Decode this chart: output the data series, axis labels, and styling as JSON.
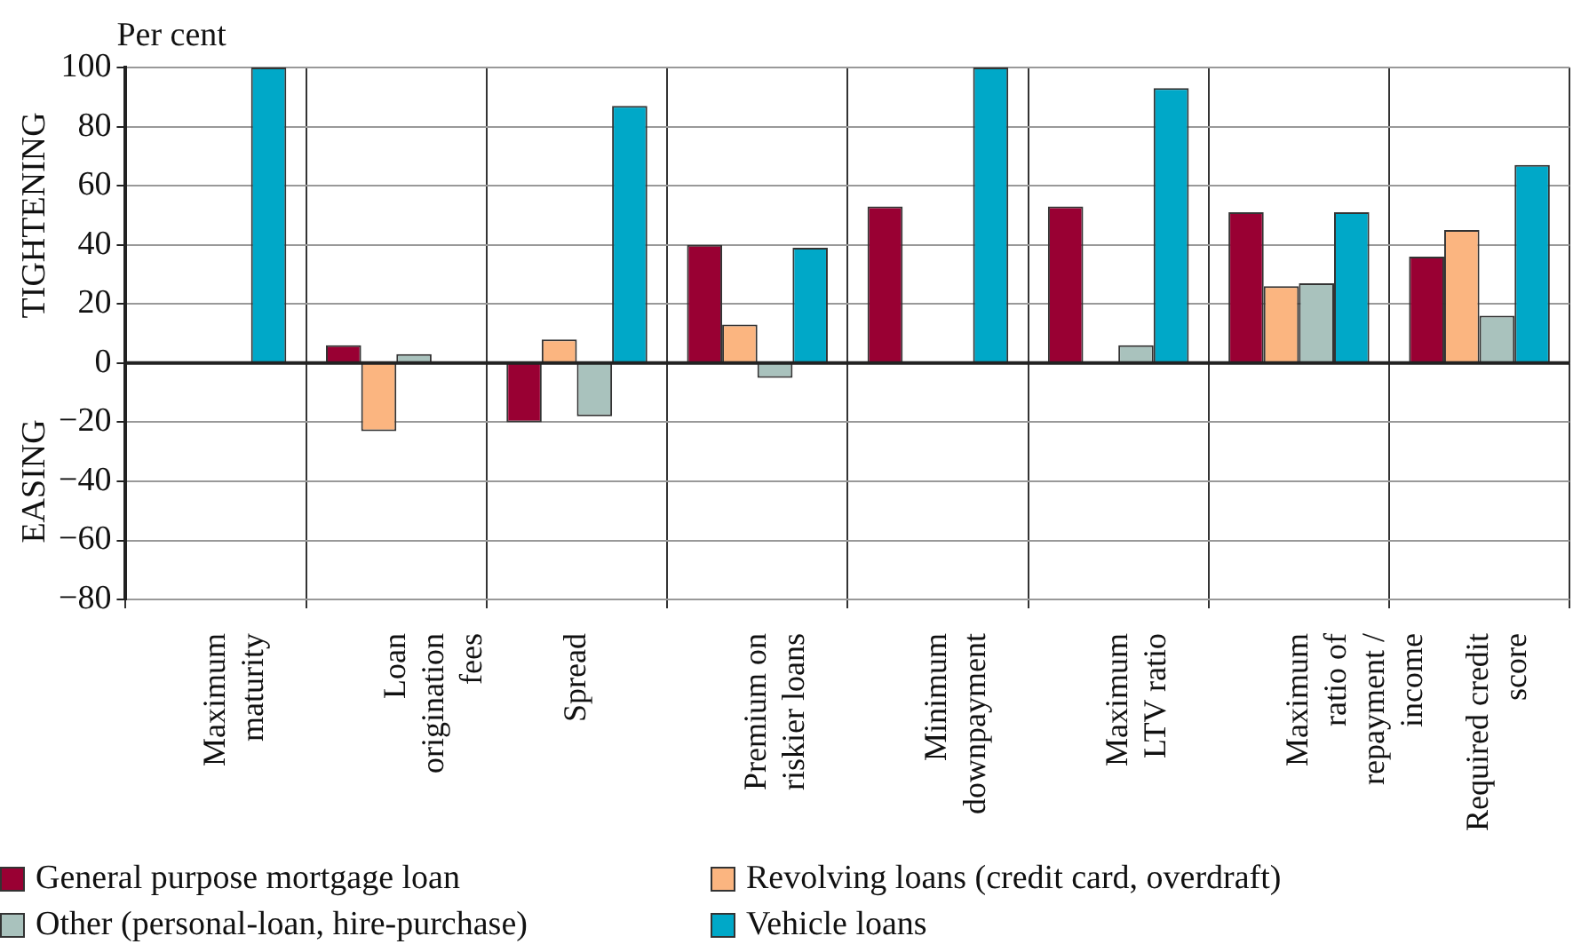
{
  "chart_data": {
    "type": "bar",
    "ylabel": "Per cent",
    "annotations": [
      "TIGHTENING",
      "EASING"
    ],
    "categories": [
      "Maximum maturity",
      "Loan origination fees",
      "Spread",
      "Premium on riskier loans",
      "Minimum downpayment",
      "Maximum LTV ratio",
      "Maximum ratio of repayment / income",
      "Required credit score"
    ],
    "series": [
      {
        "name": "General purpose mortgage loan",
        "color": "#990033",
        "values": [
          null,
          6,
          -20,
          40,
          53,
          53,
          51,
          36
        ]
      },
      {
        "name": "Revolving loans (credit card, overdraft)",
        "color": "#fbb580",
        "values": [
          null,
          -23,
          8,
          13,
          null,
          null,
          26,
          45
        ]
      },
      {
        "name": "Other (personal-loan, hire-purchase)",
        "color": "#a9c2bd",
        "values": [
          null,
          3,
          -18,
          -5,
          null,
          6,
          27,
          16
        ]
      },
      {
        "name": "Vehicle loans",
        "color": "#00a8c8",
        "values": [
          100,
          null,
          87,
          39,
          100,
          93,
          51,
          67
        ]
      }
    ],
    "ylim": [
      -80,
      100
    ],
    "yticks": [
      -80,
      -60,
      -40,
      -20,
      0,
      20,
      40,
      60,
      80,
      100
    ],
    "grid": true,
    "legend": "bottom"
  }
}
